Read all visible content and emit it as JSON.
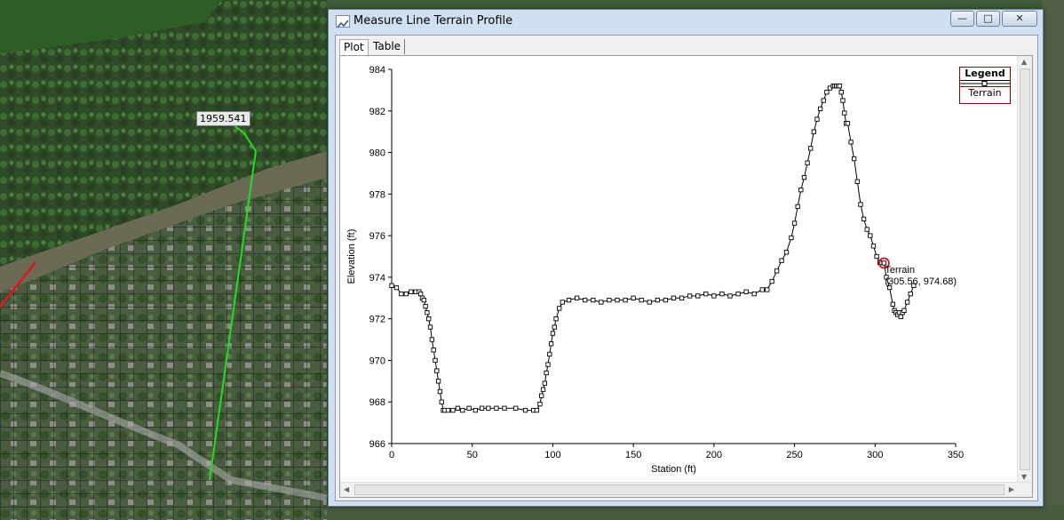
{
  "map": {
    "measure_label": "1959.541",
    "colors": {
      "vegetation": "#2f4a28",
      "river": "#6b6a55",
      "measure_line": "#22dd22",
      "mesh": "#111111",
      "boundary": "#cc2222"
    }
  },
  "window": {
    "title": "Measure Line Terrain Profile",
    "icon": "chart-icon",
    "controls": {
      "minimize": "—",
      "maximize": "□",
      "close": "✕"
    }
  },
  "tabs": [
    {
      "label": "Plot",
      "active": true
    },
    {
      "label": "Table",
      "active": false
    }
  ],
  "legend": {
    "title": "Legend",
    "entry": "Terrain"
  },
  "tooltip": {
    "series": "Terrain",
    "coords": "(305.56, 974.68)"
  },
  "chart_data": {
    "type": "line",
    "title": "",
    "xlabel": "Station  (ft)",
    "ylabel": "Elevation  (ft)",
    "xlim": [
      0,
      350
    ],
    "ylim": [
      966,
      984
    ],
    "xticks": [
      0,
      50,
      100,
      150,
      200,
      250,
      300,
      350
    ],
    "yticks": [
      966,
      968,
      970,
      972,
      974,
      976,
      978,
      980,
      982,
      984
    ],
    "grid": false,
    "legend_position": "top-right",
    "highlight_point": {
      "x": 305.56,
      "y": 974.68
    },
    "series": [
      {
        "name": "Terrain",
        "color": "#000000",
        "marker": "square",
        "x": [
          0,
          3,
          6,
          9,
          12,
          15,
          17,
          18,
          19,
          20,
          21,
          22,
          23,
          24,
          25,
          26,
          27,
          28,
          29,
          30,
          31,
          32,
          33,
          35,
          38,
          41,
          44,
          48,
          52,
          56,
          60,
          65,
          70,
          77,
          83,
          88,
          90,
          92,
          93,
          94,
          95,
          96,
          97,
          98,
          99,
          100,
          101,
          102,
          104,
          106,
          110,
          115,
          120,
          125,
          130,
          135,
          140,
          145,
          150,
          155,
          160,
          165,
          170,
          175,
          180,
          185,
          190,
          195,
          200,
          205,
          210,
          215,
          220,
          225,
          230,
          233,
          236,
          239,
          242,
          245,
          248,
          250,
          252,
          254,
          256,
          258,
          260,
          262,
          264,
          266,
          268,
          270,
          272,
          274,
          275,
          276,
          277,
          278,
          279,
          280,
          281,
          282,
          283,
          285,
          287,
          289,
          291,
          293,
          295,
          297,
          299,
          301,
          303,
          305.56,
          307,
          309,
          311,
          312,
          313,
          314,
          315,
          316,
          317,
          318,
          320,
          322,
          324
        ],
        "y": [
          973.6,
          973.5,
          973.2,
          973.2,
          973.3,
          973.3,
          973.3,
          973.2,
          973.0,
          972.9,
          972.6,
          972.3,
          972.0,
          971.6,
          971.0,
          970.5,
          970.0,
          969.5,
          969.0,
          968.5,
          968.0,
          967.6,
          967.6,
          967.6,
          967.6,
          967.7,
          967.6,
          967.7,
          967.6,
          967.7,
          967.7,
          967.7,
          967.7,
          967.7,
          967.6,
          967.6,
          967.6,
          967.9,
          968.3,
          968.6,
          968.9,
          969.4,
          969.8,
          970.3,
          970.8,
          971.3,
          971.6,
          972.0,
          972.5,
          972.8,
          972.9,
          973.0,
          972.9,
          972.9,
          972.8,
          972.9,
          972.9,
          972.9,
          973.0,
          972.9,
          972.8,
          972.9,
          972.9,
          973.0,
          973.0,
          973.1,
          973.1,
          973.2,
          973.1,
          973.2,
          973.1,
          973.2,
          973.3,
          973.2,
          973.4,
          973.4,
          973.8,
          974.3,
          974.8,
          975.2,
          975.9,
          976.6,
          977.4,
          978.2,
          978.8,
          979.5,
          980.2,
          981.0,
          981.6,
          982.1,
          982.5,
          982.9,
          983.1,
          983.2,
          983.2,
          983.2,
          983.2,
          983.2,
          982.9,
          982.5,
          981.9,
          981.4,
          981.4,
          980.5,
          979.7,
          978.6,
          977.5,
          976.8,
          976.3,
          976.0,
          975.5,
          975.0,
          974.7,
          974.68,
          974.0,
          973.5,
          972.7,
          972.4,
          972.3,
          972.2,
          972.3,
          972.1,
          972.3,
          972.4,
          972.8,
          973.2,
          973.6
        ]
      }
    ]
  }
}
